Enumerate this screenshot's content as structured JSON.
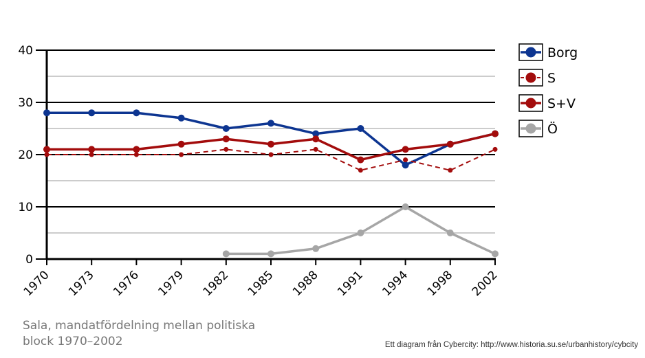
{
  "chart_data": {
    "type": "line",
    "x": [
      "1970",
      "1973",
      "1976",
      "1979",
      "1982",
      "1985",
      "1988",
      "1991",
      "1994",
      "1998",
      "2002"
    ],
    "ylim": [
      0,
      40
    ],
    "yticks": [
      0,
      10,
      20,
      30,
      40
    ],
    "grid": true,
    "legend_position": "right",
    "series": [
      {
        "name": "Borg",
        "color": "#0d3591",
        "style": "solid",
        "values": [
          28,
          28,
          28,
          27,
          25,
          26,
          24,
          25,
          18,
          22,
          24
        ]
      },
      {
        "name": "S",
        "color": "#a30c0c",
        "style": "dashed",
        "values": [
          20,
          20,
          20,
          20,
          21,
          20,
          21,
          17,
          19,
          17,
          21
        ]
      },
      {
        "name": "S+V",
        "color": "#a30c0c",
        "style": "solid",
        "values": [
          21,
          21,
          21,
          22,
          23,
          22,
          23,
          19,
          21,
          22,
          24
        ]
      },
      {
        "name": "Ö",
        "color": "#a6a6a6",
        "style": "solid",
        "values": [
          null,
          null,
          null,
          null,
          1,
          1,
          2,
          5,
          10,
          5,
          1
        ]
      }
    ]
  },
  "caption": {
    "line1": "Sala, mandatfördelning mellan politiska",
    "line2": "block 1970–2002"
  },
  "credit": "Ett diagram från Cybercity: http://www.historia.su.se/urbanhistory/cybcity"
}
